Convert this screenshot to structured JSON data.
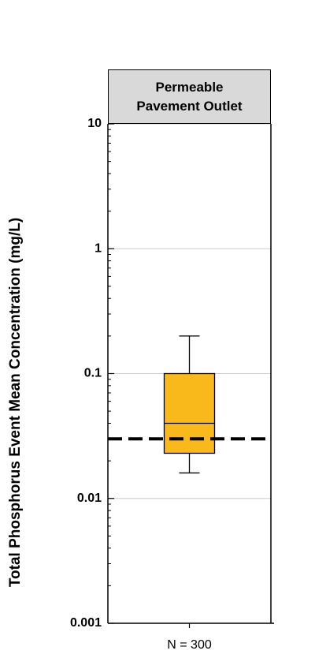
{
  "chart_data": {
    "type": "box",
    "panel_title": "Permeable Pavement Outlet",
    "ylabel": "Total Phosphorus Event Mean Concentration (mg/L)",
    "categories": [
      "N = 300"
    ],
    "boxes": [
      {
        "whislo": 0.016,
        "q1": 0.023,
        "med": 0.04,
        "q3": 0.1,
        "whishi": 0.2,
        "color": "#f9b91b"
      }
    ],
    "hline": {
      "value": 0.03,
      "style": "dashed"
    },
    "yscale": "log",
    "ylim": [
      0.001,
      10
    ],
    "yticks": [
      0.001,
      0.01,
      0.1,
      1,
      10
    ],
    "minor_yticks": [
      0.002,
      0.003,
      0.004,
      0.005,
      0.006,
      0.007,
      0.008,
      0.009,
      0.02,
      0.03,
      0.04,
      0.05,
      0.06,
      0.07,
      0.08,
      0.09,
      0.2,
      0.3,
      0.4,
      0.5,
      0.6,
      0.7,
      0.8,
      0.9,
      2,
      3,
      4,
      5,
      6,
      7,
      8,
      9
    ],
    "grid": true
  }
}
